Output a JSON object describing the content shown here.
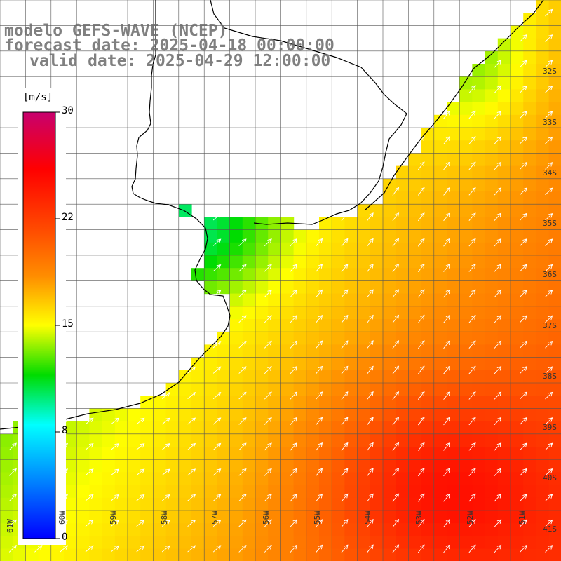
{
  "header": {
    "title": "modelo GEFS-WAVE (NCEP)",
    "forecast_line": "forecast date: 2025-04-18 00:00:00",
    "valid_line": "valid date: 2025-04-29 12:00:00"
  },
  "colorbar": {
    "unit": "[m/s]",
    "ticks": [
      "30",
      "22",
      "15",
      "8",
      "0"
    ],
    "range": [
      0,
      30
    ]
  },
  "axes": {
    "lat_labels": [
      "32S",
      "33S",
      "34S",
      "35S",
      "36S",
      "37S",
      "38S",
      "39S",
      "40S",
      "41S"
    ],
    "lon_labels": [
      "61W",
      "60W",
      "59W",
      "58W",
      "57W",
      "56W",
      "55W",
      "54W",
      "53W",
      "52W",
      "51W"
    ]
  },
  "colors": {
    "land": "#ffffff",
    "coastline": "#000000",
    "grid": "#555555",
    "arrows": "#ffffff"
  }
}
